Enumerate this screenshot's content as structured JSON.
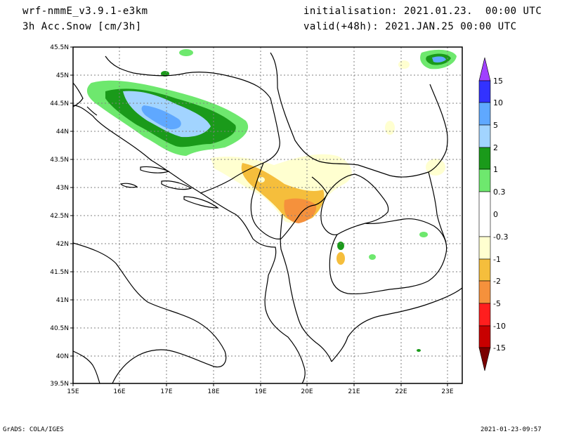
{
  "header": {
    "model": "wrf-nmmE_v3.9.1-e3km",
    "field": "3h Acc.Snow [cm/3h]",
    "init": "initialisation: 2021.01.23.  00:00 UTC",
    "valid": "valid(+48h): 2021.JAN.25 00:00 UTC"
  },
  "axes": {
    "lat_labels": [
      "45.5N",
      "45N",
      "44.5N",
      "44N",
      "43.5N",
      "43N",
      "42.5N",
      "42N",
      "41.5N",
      "41N",
      "40.5N",
      "40N",
      "39.5N"
    ],
    "lon_labels": [
      "15E",
      "16E",
      "17E",
      "18E",
      "19E",
      "20E",
      "21E",
      "22E",
      "23E"
    ]
  },
  "colorbar": {
    "labels": [
      "15",
      "10",
      "5",
      "2",
      "1",
      "0.3",
      "0",
      "-0.3",
      "-1",
      "-2",
      "-5",
      "-10",
      "-15"
    ],
    "colors": [
      "#3232ff",
      "#5fa8ff",
      "#a2d4ff",
      "#1a9a1a",
      "#6ee86e",
      "#ffffff",
      "#ffffd0",
      "#f5be3c",
      "#f5913c",
      "#ff1e1e",
      "#c80000",
      "#8c0000"
    ],
    "top_arrow_color": "#a040ff",
    "bottom_arrow_color": "#7a0000"
  },
  "footer": {
    "software": "GrADS: COLA/IGES",
    "timestamp": "2021-01-23-09:57"
  }
}
